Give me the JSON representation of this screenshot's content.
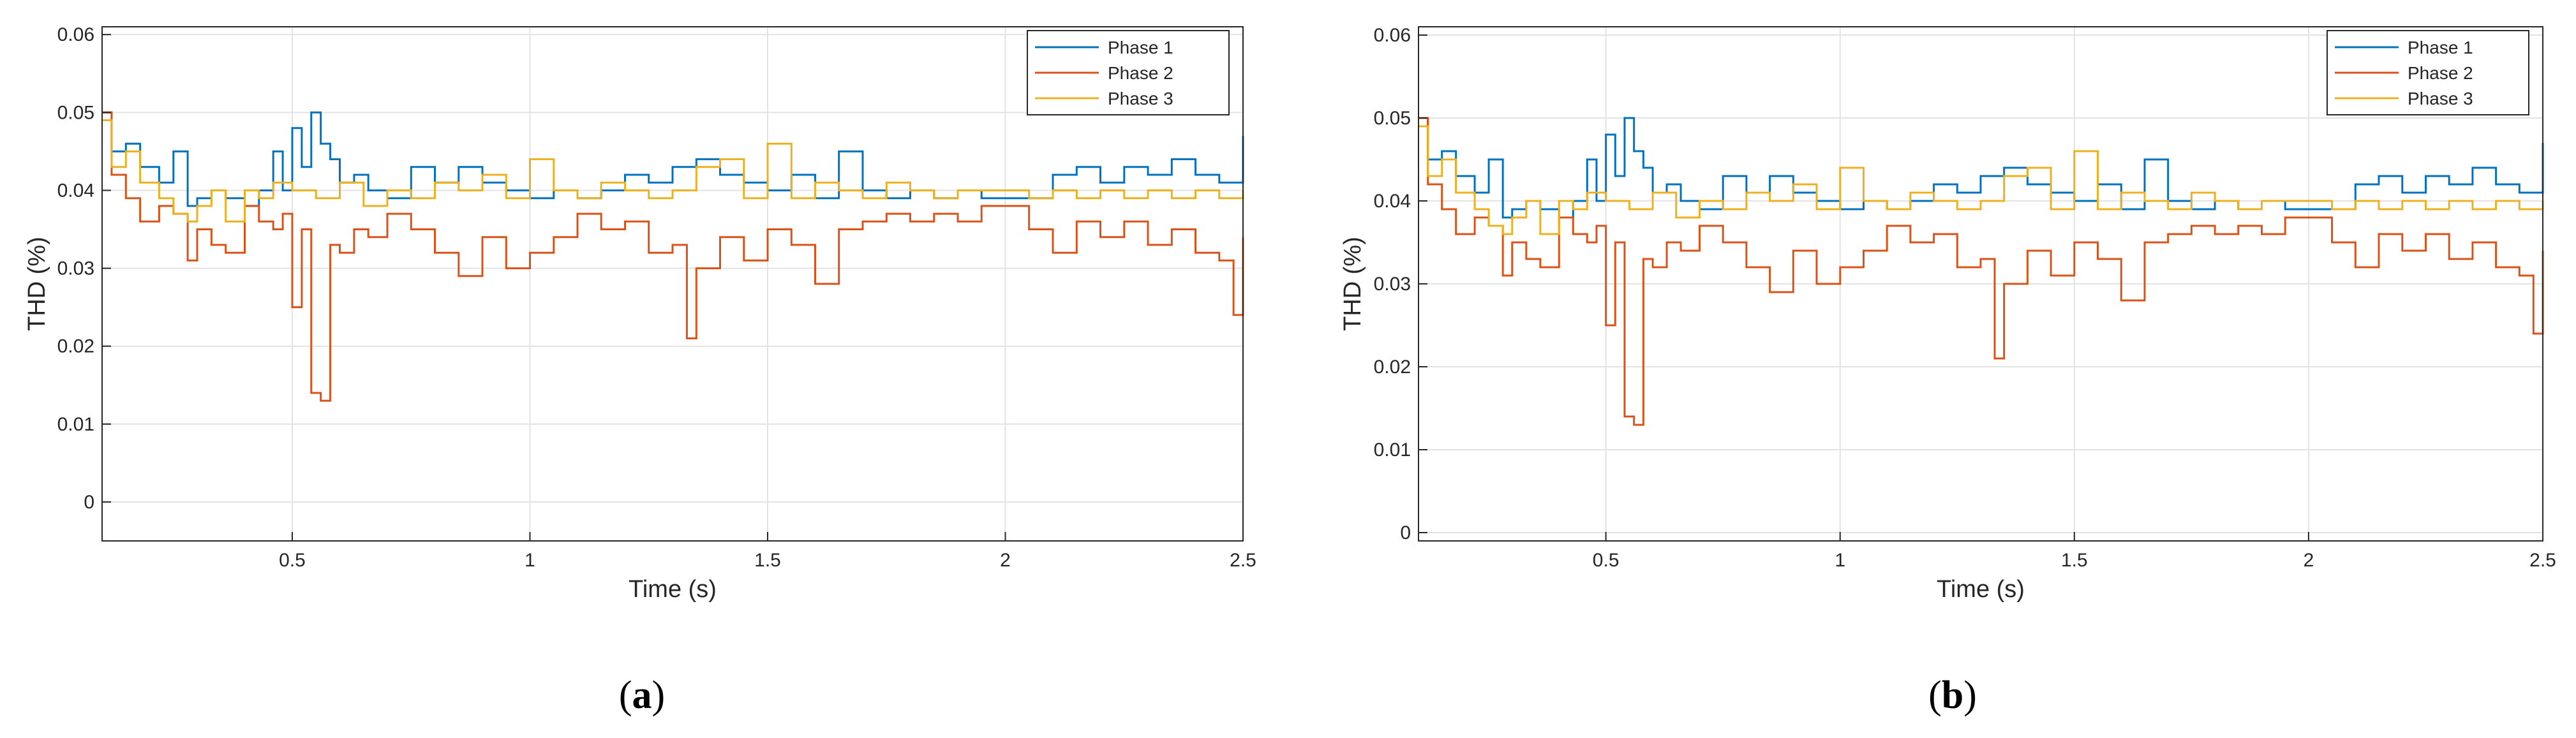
{
  "chart_data": [
    {
      "type": "line",
      "panel": "a",
      "caption": {
        "open": "(",
        "letter": "a",
        "close": ")"
      },
      "xlabel": "Time (s)",
      "ylabel": "THD (%)",
      "xlim": [
        0.1,
        2.5
      ],
      "ylim": [
        -0.005,
        0.061
      ],
      "xticks": [
        0.5,
        1,
        1.5,
        2,
        2.5
      ],
      "xtick_labels": [
        "0.5",
        "1",
        "1.5",
        "2",
        "2.5"
      ],
      "yticks": [
        0,
        0.01,
        0.02,
        0.03,
        0.04,
        0.05,
        0.06
      ],
      "ytick_labels": [
        "0",
        "0.01",
        "0.02",
        "0.03",
        "0.04",
        "0.05",
        "0.06"
      ],
      "grid": true,
      "legend": "top-right",
      "series": [
        {
          "name": "Phase 1",
          "color": "#0072BD",
          "x": [
            0.1,
            0.12,
            0.15,
            0.18,
            0.22,
            0.25,
            0.28,
            0.3,
            0.33,
            0.36,
            0.4,
            0.43,
            0.46,
            0.48,
            0.5,
            0.52,
            0.54,
            0.56,
            0.58,
            0.6,
            0.63,
            0.66,
            0.7,
            0.75,
            0.8,
            0.85,
            0.9,
            0.95,
            1,
            1.05,
            1.1,
            1.15,
            1.2,
            1.25,
            1.3,
            1.35,
            1.4,
            1.45,
            1.5,
            1.55,
            1.6,
            1.65,
            1.7,
            1.75,
            1.8,
            1.85,
            1.9,
            1.95,
            2,
            2.05,
            2.1,
            2.15,
            2.2,
            2.25,
            2.3,
            2.35,
            2.4,
            2.45,
            2.5
          ],
          "y": [
            0.05,
            0.045,
            0.046,
            0.043,
            0.041,
            0.045,
            0.038,
            0.039,
            0.04,
            0.039,
            0.038,
            0.04,
            0.045,
            0.04,
            0.048,
            0.043,
            0.05,
            0.046,
            0.044,
            0.041,
            0.042,
            0.04,
            0.039,
            0.043,
            0.041,
            0.043,
            0.041,
            0.04,
            0.039,
            0.04,
            0.039,
            0.04,
            0.042,
            0.041,
            0.043,
            0.044,
            0.042,
            0.041,
            0.04,
            0.042,
            0.039,
            0.045,
            0.04,
            0.039,
            0.04,
            0.039,
            0.04,
            0.039,
            0.039,
            0.039,
            0.042,
            0.043,
            0.041,
            0.043,
            0.042,
            0.044,
            0.042,
            0.041,
            0.047
          ]
        },
        {
          "name": "Phase 2",
          "color": "#D95319",
          "x": [
            0.1,
            0.12,
            0.15,
            0.18,
            0.22,
            0.25,
            0.28,
            0.3,
            0.33,
            0.36,
            0.4,
            0.43,
            0.46,
            0.48,
            0.5,
            0.52,
            0.54,
            0.56,
            0.58,
            0.6,
            0.63,
            0.66,
            0.7,
            0.75,
            0.8,
            0.85,
            0.9,
            0.95,
            1,
            1.05,
            1.1,
            1.15,
            1.2,
            1.25,
            1.3,
            1.33,
            1.35,
            1.4,
            1.45,
            1.5,
            1.55,
            1.6,
            1.65,
            1.7,
            1.75,
            1.8,
            1.85,
            1.9,
            1.95,
            2,
            2.05,
            2.1,
            2.15,
            2.2,
            2.25,
            2.3,
            2.35,
            2.4,
            2.45,
            2.48,
            2.5
          ],
          "y": [
            0.05,
            0.042,
            0.039,
            0.036,
            0.038,
            0.037,
            0.031,
            0.035,
            0.033,
            0.032,
            0.038,
            0.036,
            0.035,
            0.037,
            0.025,
            0.035,
            0.014,
            0.013,
            0.033,
            0.032,
            0.035,
            0.034,
            0.037,
            0.035,
            0.032,
            0.029,
            0.034,
            0.03,
            0.032,
            0.034,
            0.037,
            0.035,
            0.036,
            0.032,
            0.033,
            0.021,
            0.03,
            0.034,
            0.031,
            0.035,
            0.033,
            0.028,
            0.035,
            0.036,
            0.037,
            0.036,
            0.037,
            0.036,
            0.038,
            0.038,
            0.035,
            0.032,
            0.036,
            0.034,
            0.036,
            0.033,
            0.035,
            0.032,
            0.031,
            0.024,
            0.034
          ]
        },
        {
          "name": "Phase 3",
          "color": "#EDB120",
          "x": [
            0.1,
            0.12,
            0.15,
            0.18,
            0.22,
            0.25,
            0.28,
            0.3,
            0.33,
            0.36,
            0.4,
            0.43,
            0.46,
            0.5,
            0.55,
            0.6,
            0.65,
            0.7,
            0.75,
            0.8,
            0.85,
            0.9,
            0.95,
            1,
            1.05,
            1.1,
            1.15,
            1.2,
            1.25,
            1.3,
            1.35,
            1.4,
            1.45,
            1.5,
            1.55,
            1.6,
            1.65,
            1.7,
            1.75,
            1.8,
            1.85,
            1.9,
            1.95,
            2,
            2.05,
            2.1,
            2.15,
            2.2,
            2.25,
            2.3,
            2.35,
            2.4,
            2.45,
            2.5
          ],
          "y": [
            0.049,
            0.043,
            0.045,
            0.041,
            0.039,
            0.037,
            0.036,
            0.038,
            0.04,
            0.036,
            0.04,
            0.039,
            0.041,
            0.04,
            0.039,
            0.041,
            0.038,
            0.04,
            0.039,
            0.041,
            0.04,
            0.042,
            0.039,
            0.044,
            0.04,
            0.039,
            0.041,
            0.04,
            0.039,
            0.04,
            0.043,
            0.044,
            0.039,
            0.046,
            0.039,
            0.041,
            0.04,
            0.039,
            0.041,
            0.04,
            0.039,
            0.04,
            0.04,
            0.04,
            0.039,
            0.04,
            0.039,
            0.04,
            0.039,
            0.04,
            0.039,
            0.04,
            0.039,
            0.04
          ]
        }
      ]
    },
    {
      "type": "line",
      "panel": "b",
      "caption": {
        "open": "(",
        "letter": "b",
        "close": ")"
      },
      "xlabel": "Time (s)",
      "ylabel": "THD (%)",
      "xlim": [
        0.1,
        2.5
      ],
      "ylim": [
        -0.001,
        0.061
      ],
      "xticks": [
        0.5,
        1,
        1.5,
        2,
        2.5
      ],
      "xtick_labels": [
        "0.5",
        "1",
        "1.5",
        "2",
        "2.5"
      ],
      "yticks": [
        0,
        0.01,
        0.02,
        0.03,
        0.04,
        0.05,
        0.06
      ],
      "ytick_labels": [
        "0",
        "0.01",
        "0.02",
        "0.03",
        "0.04",
        "0.05",
        "0.06"
      ],
      "grid": true,
      "legend": "top-right",
      "series": [
        {
          "name": "Phase 1",
          "color": "#0072BD",
          "x": [
            0.1,
            0.12,
            0.15,
            0.18,
            0.22,
            0.25,
            0.28,
            0.3,
            0.33,
            0.36,
            0.4,
            0.43,
            0.46,
            0.48,
            0.5,
            0.52,
            0.54,
            0.56,
            0.58,
            0.6,
            0.63,
            0.66,
            0.7,
            0.75,
            0.8,
            0.85,
            0.9,
            0.95,
            1,
            1.05,
            1.1,
            1.15,
            1.2,
            1.25,
            1.3,
            1.35,
            1.4,
            1.45,
            1.5,
            1.55,
            1.6,
            1.65,
            1.7,
            1.75,
            1.8,
            1.85,
            1.9,
            1.95,
            2,
            2.05,
            2.1,
            2.15,
            2.2,
            2.25,
            2.3,
            2.35,
            2.4,
            2.45,
            2.5
          ],
          "y": [
            0.05,
            0.045,
            0.046,
            0.043,
            0.041,
            0.045,
            0.038,
            0.039,
            0.04,
            0.039,
            0.038,
            0.04,
            0.045,
            0.04,
            0.048,
            0.043,
            0.05,
            0.046,
            0.044,
            0.041,
            0.042,
            0.04,
            0.039,
            0.043,
            0.041,
            0.043,
            0.041,
            0.04,
            0.039,
            0.04,
            0.039,
            0.04,
            0.042,
            0.041,
            0.043,
            0.044,
            0.042,
            0.041,
            0.04,
            0.042,
            0.039,
            0.045,
            0.04,
            0.039,
            0.04,
            0.039,
            0.04,
            0.039,
            0.039,
            0.039,
            0.042,
            0.043,
            0.041,
            0.043,
            0.042,
            0.044,
            0.042,
            0.041,
            0.047
          ]
        },
        {
          "name": "Phase 2",
          "color": "#D95319",
          "x": [
            0.1,
            0.12,
            0.15,
            0.18,
            0.22,
            0.25,
            0.28,
            0.3,
            0.33,
            0.36,
            0.4,
            0.43,
            0.46,
            0.48,
            0.5,
            0.52,
            0.54,
            0.56,
            0.58,
            0.6,
            0.63,
            0.66,
            0.7,
            0.75,
            0.8,
            0.85,
            0.9,
            0.95,
            1,
            1.05,
            1.1,
            1.15,
            1.2,
            1.25,
            1.3,
            1.33,
            1.35,
            1.4,
            1.45,
            1.5,
            1.55,
            1.6,
            1.65,
            1.7,
            1.75,
            1.8,
            1.85,
            1.9,
            1.95,
            2,
            2.05,
            2.1,
            2.15,
            2.2,
            2.25,
            2.3,
            2.35,
            2.4,
            2.45,
            2.48,
            2.5
          ],
          "y": [
            0.05,
            0.042,
            0.039,
            0.036,
            0.038,
            0.037,
            0.031,
            0.035,
            0.033,
            0.032,
            0.038,
            0.036,
            0.035,
            0.037,
            0.025,
            0.035,
            0.014,
            0.013,
            0.033,
            0.032,
            0.035,
            0.034,
            0.037,
            0.035,
            0.032,
            0.029,
            0.034,
            0.03,
            0.032,
            0.034,
            0.037,
            0.035,
            0.036,
            0.032,
            0.033,
            0.021,
            0.03,
            0.034,
            0.031,
            0.035,
            0.033,
            0.028,
            0.035,
            0.036,
            0.037,
            0.036,
            0.037,
            0.036,
            0.038,
            0.038,
            0.035,
            0.032,
            0.036,
            0.034,
            0.036,
            0.033,
            0.035,
            0.032,
            0.031,
            0.024,
            0.034
          ]
        },
        {
          "name": "Phase 3",
          "color": "#EDB120",
          "x": [
            0.1,
            0.12,
            0.15,
            0.18,
            0.22,
            0.25,
            0.28,
            0.3,
            0.33,
            0.36,
            0.4,
            0.43,
            0.46,
            0.5,
            0.55,
            0.6,
            0.65,
            0.7,
            0.75,
            0.8,
            0.85,
            0.9,
            0.95,
            1,
            1.05,
            1.1,
            1.15,
            1.2,
            1.25,
            1.3,
            1.35,
            1.4,
            1.45,
            1.5,
            1.55,
            1.6,
            1.65,
            1.7,
            1.75,
            1.8,
            1.85,
            1.9,
            1.95,
            2,
            2.05,
            2.1,
            2.15,
            2.2,
            2.25,
            2.3,
            2.35,
            2.4,
            2.45,
            2.5
          ],
          "y": [
            0.049,
            0.043,
            0.045,
            0.041,
            0.039,
            0.037,
            0.036,
            0.038,
            0.04,
            0.036,
            0.04,
            0.039,
            0.041,
            0.04,
            0.039,
            0.041,
            0.038,
            0.04,
            0.039,
            0.041,
            0.04,
            0.042,
            0.039,
            0.044,
            0.04,
            0.039,
            0.041,
            0.04,
            0.039,
            0.04,
            0.043,
            0.044,
            0.039,
            0.046,
            0.039,
            0.041,
            0.04,
            0.039,
            0.041,
            0.04,
            0.039,
            0.04,
            0.04,
            0.04,
            0.039,
            0.04,
            0.039,
            0.04,
            0.039,
            0.04,
            0.039,
            0.04,
            0.039,
            0.04
          ]
        }
      ]
    }
  ]
}
